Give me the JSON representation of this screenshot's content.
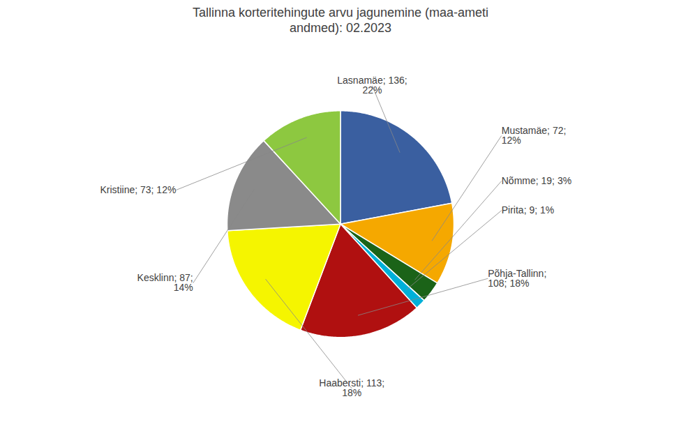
{
  "chart_data": {
    "type": "pie",
    "title": "Tallinna korteritehingute arvu jagunemine (maa-ameti\nandmed): 02.2023",
    "categories": [
      "Lasnamäe",
      "Mustamäe",
      "Nõmme",
      "Pirita",
      "Põhja-Tallinn",
      "Haabersti",
      "Kesklinn",
      "Kristiine"
    ],
    "values": [
      136,
      72,
      19,
      9,
      108,
      113,
      87,
      73
    ],
    "colors": [
      "#3A5FA0",
      "#F5A800",
      "#1B6318",
      "#00B0D8",
      "#B01010",
      "#F5F500",
      "#8A8A8A",
      "#8DC840"
    ],
    "value_labels": [
      "Lasnamäe; 136;\n22%",
      "Mustamäe; 72;\n12%",
      "Nõmme; 19; 3%",
      "Pirita; 9; 1%",
      "Põhja-Tallinn;\n108; 18%",
      "Haabersti; 113;\n18%",
      "Kesklinn; 87;\n14%",
      "Kristiine; 73; 12%"
    ],
    "data_labels": true
  }
}
